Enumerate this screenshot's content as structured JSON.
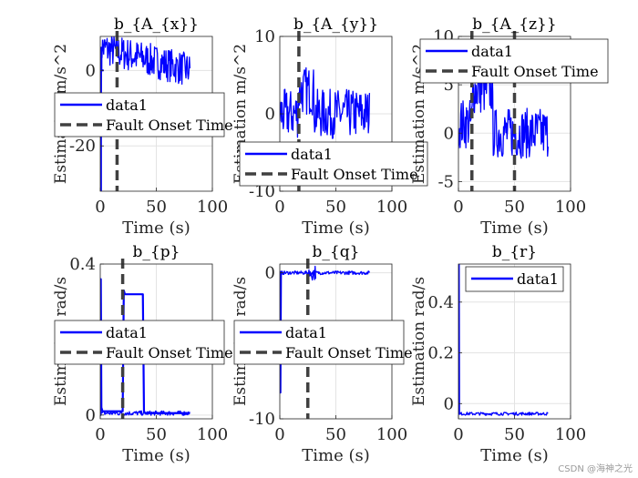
{
  "watermark": "CSDN @海神之光",
  "chart_data": [
    {
      "type": "line",
      "title": "b_{A_{x}}",
      "xlabel": "Time (s)",
      "ylabel": "Estimation m/s^2",
      "xlim": [
        0,
        100
      ],
      "ylim": [
        -32,
        9
      ],
      "xticks": [
        0,
        50,
        100
      ],
      "yticks": [
        -20,
        0
      ],
      "legend_position": "middle",
      "legend": [
        "data1",
        "Fault Onset Time"
      ],
      "fault_onset": 15,
      "series": [
        {
          "name": "data1",
          "kind": "noise",
          "t": [
            0,
            0.6,
            1,
            80
          ],
          "y": [
            -32,
            -32,
            6,
            0
          ],
          "band": 4.5
        },
        {
          "name": "data1",
          "kind": "line",
          "x": [
            0,
            0.6,
            0.6,
            1,
            1,
            3
          ],
          "y": [
            -32,
            -32,
            6,
            6,
            0,
            0
          ]
        }
      ]
    },
    {
      "type": "line",
      "title": "b_{A_{y}}",
      "xlabel": "Time (s)",
      "ylabel": "Estimation m/s^2",
      "xlim": [
        0,
        100
      ],
      "ylim": [
        -10,
        10
      ],
      "xticks": [
        0,
        50,
        100
      ],
      "yticks": [
        -10,
        0,
        10
      ],
      "legend_position": "lower-middle",
      "legend": [
        "data1",
        "Fault Onset Time"
      ],
      "fault_onset": 17,
      "series": [
        {
          "name": "data1",
          "kind": "noise",
          "t": [
            0,
            16,
            17,
            30,
            31,
            80
          ],
          "y": [
            0,
            0,
            3,
            3,
            0,
            0
          ],
          "band": 3.2
        }
      ]
    },
    {
      "type": "line",
      "title": "b_{A_{z}}",
      "xlabel": "Time (s)",
      "ylabel": "Estimation m/s^2",
      "xlim": [
        0,
        100
      ],
      "ylim": [
        -6,
        10
      ],
      "xticks": [
        0,
        50,
        100
      ],
      "yticks": [
        -5,
        0,
        5,
        10
      ],
      "legend_position": "top-right",
      "legend": [
        "data1",
        "Fault Onset Time"
      ],
      "fault_onset_lines": [
        12,
        50
      ],
      "series": [
        {
          "name": "data1",
          "kind": "noise",
          "t": [
            0,
            12,
            13,
            30,
            31,
            80
          ],
          "y": [
            1,
            1,
            4.5,
            4.5,
            0,
            0
          ],
          "band": 2.6
        }
      ]
    },
    {
      "type": "line",
      "title": "b_{p}",
      "xlabel": "Time (s)",
      "ylabel": "Estimation rad/s",
      "xlim": [
        0,
        100
      ],
      "ylim": [
        -0.01,
        0.4
      ],
      "xticks": [
        0,
        50,
        100
      ],
      "yticks": [
        0,
        0.4
      ],
      "legend_position": "middle",
      "legend": [
        "data1",
        "Fault Onset Time"
      ],
      "fault_onset": 20,
      "series": [
        {
          "name": "data1",
          "kind": "line",
          "x": [
            0,
            0.5,
            1,
            2,
            20,
            21,
            22,
            38,
            39,
            40,
            80
          ],
          "y": [
            0,
            0.36,
            0.02,
            0.01,
            0.01,
            0.33,
            0.32,
            0.32,
            0.01,
            0.005,
            0.005
          ]
        },
        {
          "name": "data1",
          "kind": "noise",
          "t": [
            0,
            80
          ],
          "y": [
            0.005,
            0.005
          ],
          "band": 0.006
        }
      ]
    },
    {
      "type": "line",
      "title": "b_{q}",
      "xlabel": "Time (s)",
      "ylabel": "Estimation rad/s",
      "xlim": [
        0,
        100
      ],
      "ylim": [
        -10,
        0.6
      ],
      "xticks": [
        0,
        50,
        100
      ],
      "yticks": [
        -10,
        0
      ],
      "legend_position": "middle",
      "legend": [
        "data1",
        "Fault Onset Time"
      ],
      "fault_onset": 25,
      "series": [
        {
          "name": "data1",
          "kind": "line",
          "x": [
            0,
            0.5,
            1,
            3
          ],
          "y": [
            -8.2,
            -8.2,
            0,
            0
          ]
        },
        {
          "name": "data1",
          "kind": "noise",
          "t": [
            0,
            24,
            25,
            33,
            34,
            80
          ],
          "y": [
            0,
            0,
            0,
            0,
            0,
            0
          ],
          "band": 0.12
        },
        {
          "name": "data1",
          "kind": "noise",
          "t": [
            25,
            32
          ],
          "y": [
            0,
            0
          ],
          "band": 0.5
        }
      ]
    },
    {
      "type": "line",
      "title": "b_{r}",
      "xlabel": "Time (s)",
      "ylabel": "Estimation rad/s",
      "xlim": [
        0,
        100
      ],
      "ylim": [
        -0.06,
        0.55
      ],
      "xticks": [
        0,
        50,
        100
      ],
      "yticks": [
        0,
        0.2,
        0.4
      ],
      "legend_position": "top-right",
      "legend": [
        "data1"
      ],
      "series": [
        {
          "name": "data1",
          "kind": "line",
          "x": [
            0,
            0.3,
            0.6,
            2
          ],
          "y": [
            0.55,
            0.55,
            -0.04,
            -0.04
          ]
        },
        {
          "name": "data1",
          "kind": "noise",
          "t": [
            0,
            80
          ],
          "y": [
            -0.04,
            -0.04
          ],
          "band": 0.006
        }
      ]
    }
  ]
}
